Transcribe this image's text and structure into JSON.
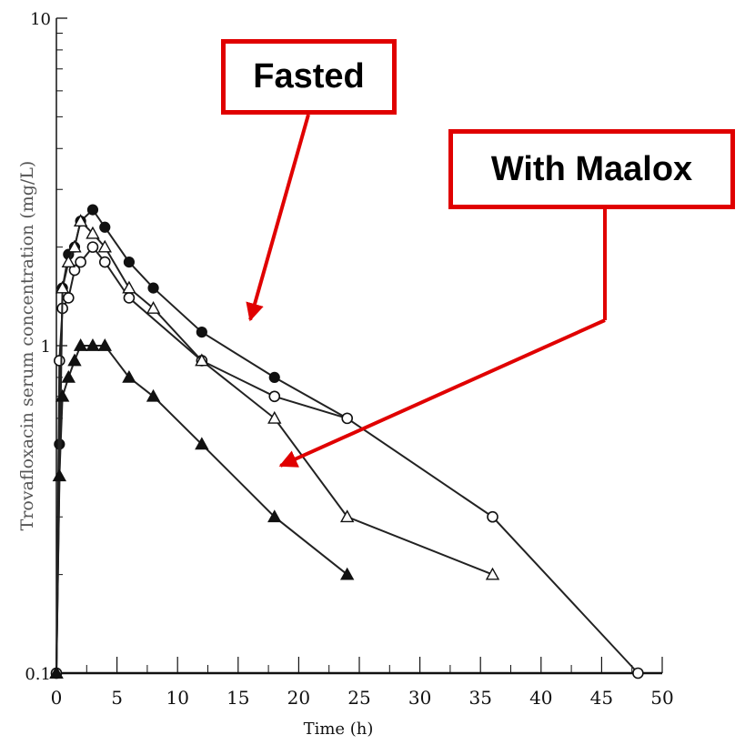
{
  "chart_data": {
    "type": "line",
    "xlabel": "Time (h)",
    "ylabel": "Trovafloxacin serum concentration (mg/L)",
    "yscale": "log",
    "xlim": [
      0,
      50
    ],
    "ylim": [
      0.1,
      10
    ],
    "xticks": [
      "0",
      "5",
      "10",
      "15",
      "20",
      "25",
      "30",
      "35",
      "40",
      "45",
      "50"
    ],
    "yticks": [
      "0.1",
      "1",
      "10"
    ],
    "grid": false,
    "series": [
      {
        "marker": "filled-circle",
        "x": [
          0,
          0.25,
          0.5,
          1,
          1.5,
          2,
          3,
          4,
          6,
          8,
          12,
          18,
          24
        ],
        "y": [
          0.1,
          0.5,
          1.5,
          1.9,
          2.0,
          2.4,
          2.6,
          2.3,
          1.8,
          1.5,
          1.1,
          0.8,
          0.6
        ]
      },
      {
        "marker": "open-circle",
        "x": [
          0,
          0.25,
          0.5,
          1,
          1.5,
          2,
          3,
          4,
          6,
          12,
          18,
          24,
          36,
          48
        ],
        "y": [
          0.1,
          0.9,
          1.3,
          1.4,
          1.7,
          1.8,
          2.0,
          1.8,
          1.4,
          0.9,
          0.7,
          0.6,
          0.3,
          0.1
        ]
      },
      {
        "marker": "open-triangle",
        "x": [
          0,
          0.5,
          1,
          1.5,
          2,
          3,
          4,
          6,
          8,
          12,
          18,
          24,
          36
        ],
        "y": [
          0.1,
          1.5,
          1.8,
          2.0,
          2.4,
          2.2,
          2.0,
          1.5,
          1.3,
          0.9,
          0.6,
          0.3,
          0.2
        ]
      },
      {
        "marker": "filled-triangle",
        "x": [
          0,
          0.25,
          0.5,
          1,
          1.5,
          2,
          3,
          4,
          6,
          8,
          12,
          18,
          24
        ],
        "y": [
          0.1,
          0.4,
          0.7,
          0.8,
          0.9,
          1.0,
          1.0,
          1.0,
          0.8,
          0.7,
          0.5,
          0.3,
          0.2
        ]
      }
    ],
    "annotations": [
      {
        "text": "Fasted",
        "box_color": "#e00000",
        "arrow_to": {
          "x": 16,
          "y": 1.2
        }
      },
      {
        "text": "With Maalox",
        "box_color": "#e00000",
        "arrow_to": {
          "x": 18.5,
          "y": 0.43
        }
      }
    ]
  }
}
